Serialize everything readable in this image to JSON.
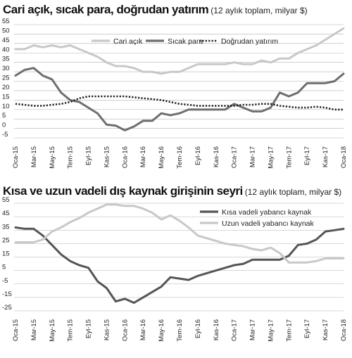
{
  "chart_data": [
    {
      "type": "line",
      "title": "Cari açık, sıcak para, doğrudan yatırım",
      "subtitle": "(12 aylık toplam, milyar $)",
      "x_labels": [
        "Oca-15",
        "Mar-15",
        "May-15",
        "Tem-15",
        "Eyl-15",
        "Kas-15",
        "Oca-16",
        "Mar-16",
        "May-16",
        "Tem-16",
        "Eyl-16",
        "Kas-16",
        "Oca-17",
        "Mar-17",
        "May-17",
        "Tem-17",
        "Eyl-17",
        "Kas-17",
        "Oca-18"
      ],
      "x": [
        "Oca-15",
        "Şub-15",
        "Mar-15",
        "Nis-15",
        "May-15",
        "Haz-15",
        "Tem-15",
        "Ağu-15",
        "Eyl-15",
        "Eki-15",
        "Kas-15",
        "Ara-15",
        "Oca-16",
        "Şub-16",
        "Mar-16",
        "Nis-16",
        "May-16",
        "Haz-16",
        "Tem-16",
        "Ağu-16",
        "Eyl-16",
        "Eki-16",
        "Kas-16",
        "Ara-16",
        "Oca-17",
        "Şub-17",
        "Mar-17",
        "Nis-17",
        "May-17",
        "Haz-17",
        "Tem-17",
        "Ağu-17",
        "Eyl-17",
        "Eki-17",
        "Kas-17",
        "Ara-17",
        "Oca-18"
      ],
      "y_ticks": [
        55,
        50,
        45,
        40,
        35,
        30,
        25,
        20,
        15,
        10,
        5,
        0,
        -5
      ],
      "ylim": [
        -5,
        55
      ],
      "legend_position": "top-right",
      "series": [
        {
          "name": "Cari açık",
          "color": "#c8c8c8",
          "style": "solid",
          "values": [
            42,
            42,
            44,
            43,
            44,
            43,
            44,
            42,
            40,
            38,
            35,
            33,
            33,
            32,
            30,
            30,
            29,
            30,
            30,
            32,
            34,
            34,
            34,
            34,
            35,
            34,
            34,
            36,
            35,
            37,
            37,
            40,
            42,
            44,
            47,
            50,
            53
          ]
        },
        {
          "name": "Sıcak para",
          "color": "#6e6e6e",
          "style": "solid",
          "values": [
            28,
            31,
            32,
            28,
            26,
            19,
            15,
            14,
            11,
            8,
            2,
            1.5,
            -1,
            1,
            4,
            4,
            8,
            7,
            8,
            10,
            10,
            10,
            10,
            10,
            13,
            11,
            9,
            9,
            11,
            19,
            17,
            19,
            24,
            24,
            24,
            25,
            29
          ]
        },
        {
          "name": "Doğrudan yatırım",
          "color": "#222222",
          "style": "dotted",
          "values": [
            13,
            12.5,
            12,
            12,
            12.5,
            13,
            14,
            16,
            17,
            17,
            17,
            17,
            17,
            16.5,
            16,
            15.5,
            15,
            14,
            13,
            12.5,
            12,
            12,
            12,
            12,
            12,
            12.5,
            12.5,
            13,
            13,
            12,
            11.5,
            11,
            11,
            11.5,
            11,
            10,
            10
          ]
        }
      ]
    },
    {
      "type": "line",
      "title": "Kısa ve uzun vadeli dış kaynak girişinin seyri",
      "subtitle": "(12 aylık toplam, milyar $)",
      "x_labels": [
        "Oca-15",
        "Mar-15",
        "May-15",
        "Tem-15",
        "Eyl-15",
        "Kas-15",
        "Oca-16",
        "Mar-16",
        "May-16",
        "Tem-16",
        "Eyl-16",
        "Kas-16",
        "Oca-17",
        "Mar-17",
        "May-17",
        "Tem-17",
        "Eyl-17",
        "Kas-17",
        "Oca-18"
      ],
      "x": [
        "Oca-15",
        "Şub-15",
        "Mar-15",
        "Nis-15",
        "May-15",
        "Haz-15",
        "Tem-15",
        "Ağu-15",
        "Eyl-15",
        "Eki-15",
        "Kas-15",
        "Ara-15",
        "Oca-16",
        "Şub-16",
        "Mar-16",
        "Nis-16",
        "May-16",
        "Haz-16",
        "Tem-16",
        "Ağu-16",
        "Eyl-16",
        "Eki-16",
        "Kas-16",
        "Ara-16",
        "Oca-17",
        "Şub-17",
        "Mar-17",
        "Nis-17",
        "May-17",
        "Haz-17",
        "Tem-17",
        "Ağu-17",
        "Eyl-17",
        "Eki-17",
        "Kas-17",
        "Ara-17",
        "Oca-18"
      ],
      "y_ticks": [
        55,
        45,
        35,
        25,
        15,
        5,
        -5,
        -15,
        -25
      ],
      "ylim": [
        -25,
        55
      ],
      "legend_position": "top-right",
      "series": [
        {
          "name": "Kısa vadeli yabancı kaynak",
          "color": "#555555",
          "style": "solid",
          "values": [
            37,
            36,
            36,
            31,
            24,
            17,
            12,
            9,
            7,
            -3,
            -8,
            -18,
            -16,
            -19,
            -15,
            -11,
            -7,
            0,
            -1,
            -2,
            1,
            3,
            5,
            7,
            9,
            10,
            13,
            13,
            13,
            13,
            16,
            24,
            25,
            28,
            34,
            35,
            36
          ]
        },
        {
          "name": "Uzun vadeli yabancı kaynak",
          "color": "#c8c8c8",
          "style": "solid",
          "values": [
            26,
            26,
            26,
            28,
            34,
            37,
            41,
            44,
            48,
            51,
            54,
            54,
            53,
            53,
            51,
            48,
            43,
            46,
            42,
            37,
            31,
            29,
            27,
            25,
            24,
            23,
            21,
            20,
            22,
            18,
            11,
            11,
            11,
            12,
            14,
            14,
            14
          ]
        }
      ]
    }
  ]
}
